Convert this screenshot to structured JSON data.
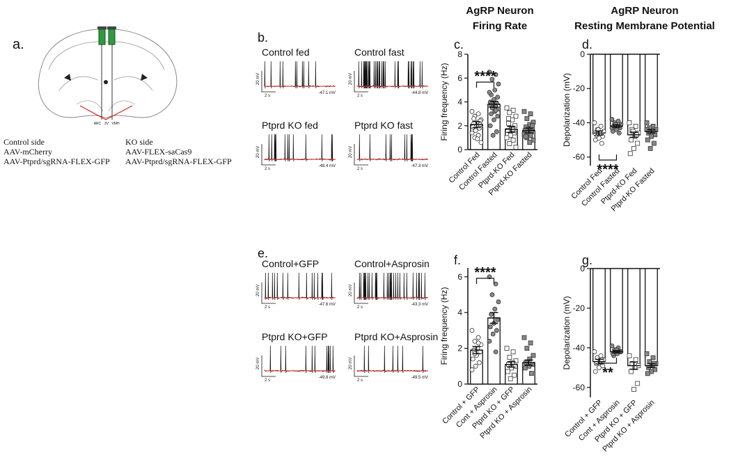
{
  "headers": [
    [
      "AgRP Neuron",
      "Firing Rate"
    ],
    [
      "AgRP Neuron",
      "Resting Membrane Potential"
    ]
  ],
  "panel_a": {
    "label": "a.",
    "left": [
      "Control side",
      "AAV-mCherry",
      "AAV-Ptprd/sgRNA-FLEX-GFP"
    ],
    "right": [
      "KO side",
      "AAV-FLEX-saCas9",
      "AAV-Ptprd/sgRNA-FLEX-GFP"
    ],
    "regions": [
      "ARC",
      "3V",
      "VMH"
    ]
  },
  "panel_b": {
    "label": "b.",
    "traces": [
      {
        "name": "Control fed",
        "potential": "-47.1 mV"
      },
      {
        "name": "Control fast",
        "potential": "-44.8 mV"
      },
      {
        "name": "Ptprd KO fed",
        "potential": "-48.4 mV"
      },
      {
        "name": "Ptprd KO fast",
        "potential": "-47.3 mV"
      }
    ],
    "scale": {
      "voltage": "20 mV",
      "time": "2 s"
    }
  },
  "panel_e": {
    "label": "e.",
    "traces": [
      {
        "name": "Control+GFP",
        "potential": "-47.6 mV"
      },
      {
        "name": "Control+Asprosin",
        "potential": "-43.3 mV"
      },
      {
        "name": "Ptprd KO+GFP",
        "potential": "-49.8 mV"
      },
      {
        "name": "Ptprd KO+Asprosin",
        "potential": "-49.5 mV"
      }
    ],
    "scale": {
      "voltage": "20 mV",
      "time": "2 s"
    }
  },
  "chart_data": [
    {
      "type": "bar",
      "label": "c.",
      "ylabel": "Firing frequency (Hz)",
      "categories": [
        "Control Fed",
        "Control Fasted",
        "Ptprd-KO Fed",
        "Ptprd-KO Fasted"
      ],
      "values": [
        2.1,
        3.8,
        1.7,
        1.6
      ],
      "errors": [
        0.25,
        0.25,
        0.25,
        0.2
      ],
      "ylim": [
        0,
        8
      ],
      "yticks": [
        0,
        2,
        4,
        6,
        8
      ],
      "significance": "****",
      "point_styles": [
        "open-circle",
        "filled-circle",
        "open-square",
        "filled-square"
      ],
      "points": [
        [
          3.2,
          3.0,
          2.8,
          2.5,
          2.3,
          2.2,
          2.1,
          2.0,
          1.9,
          1.8,
          1.6,
          1.4,
          1.2,
          1.0,
          0.6,
          0.9,
          2.6,
          2.4
        ],
        [
          6.5,
          6.3,
          5.9,
          5.5,
          5.0,
          4.6,
          4.4,
          4.2,
          4.0,
          3.9,
          3.8,
          3.7,
          3.6,
          3.5,
          3.4,
          3.2,
          3.0,
          2.8,
          2.5,
          2.0,
          1.5,
          1.2,
          4.8,
          3.3
        ],
        [
          3.5,
          3.3,
          3.1,
          2.8,
          2.5,
          2.2,
          2.0,
          1.8,
          1.6,
          1.4,
          1.2,
          1.0,
          0.8,
          0.5,
          0.2,
          1.7,
          2.6
        ],
        [
          3.2,
          3.0,
          2.6,
          2.3,
          2.1,
          1.9,
          1.8,
          1.7,
          1.6,
          1.5,
          1.4,
          1.3,
          1.2,
          1.0,
          0.8,
          0.6,
          1.1,
          2.0
        ]
      ]
    },
    {
      "type": "bar",
      "label": "d.",
      "ylabel": "Depolarization (mV)",
      "categories": [
        "Control Fed",
        "Control Fasted",
        "Ptprd-KO Fed",
        "Ptprd-KO Fasted"
      ],
      "values": [
        -46,
        -42,
        -47,
        -45
      ],
      "errors": [
        1.2,
        0.8,
        1.5,
        1.0
      ],
      "ylim": [
        -65,
        0
      ],
      "yticks": [
        -60,
        -40,
        -20,
        0
      ],
      "significance": "****",
      "point_styles": [
        "open-circle",
        "filled-circle",
        "open-square",
        "filled-square"
      ],
      "points": [
        [
          -40,
          -42,
          -44,
          -45,
          -46,
          -47,
          -48,
          -49,
          -50,
          -52,
          -44,
          -46
        ],
        [
          -38,
          -39,
          -40,
          -41,
          -42,
          -42,
          -43,
          -44,
          -45,
          -46,
          -41,
          -43
        ],
        [
          -40,
          -42,
          -44,
          -46,
          -48,
          -50,
          -52,
          -55,
          -58,
          -47,
          -45
        ],
        [
          -40,
          -42,
          -43,
          -44,
          -45,
          -46,
          -47,
          -48,
          -50,
          -52,
          -55,
          -44
        ]
      ]
    },
    {
      "type": "bar",
      "label": "f.",
      "ylabel": "Firing frequency (Hz)",
      "categories": [
        "Control + GFP",
        "Cont + Asprosin",
        "Ptprd KO + GFP",
        "Ptprd KO + Asprosin"
      ],
      "values": [
        1.9,
        3.7,
        1.1,
        1.2
      ],
      "errors": [
        0.2,
        0.3,
        0.15,
        0.15
      ],
      "ylim": [
        0,
        6.5
      ],
      "yticks": [
        0,
        2,
        4,
        6
      ],
      "significance": "****",
      "point_styles": [
        "open-circle",
        "filled-circle",
        "open-square",
        "filled-square"
      ],
      "points": [
        [
          3.0,
          2.6,
          2.4,
          2.2,
          2.0,
          1.9,
          1.8,
          1.6,
          1.4,
          1.2,
          1.0,
          0.8,
          2.3,
          1.7
        ],
        [
          6.0,
          5.6,
          5.0,
          4.6,
          4.2,
          3.9,
          3.6,
          3.4,
          3.2,
          3.0,
          2.8,
          2.4,
          1.8
        ],
        [
          2.0,
          1.8,
          1.5,
          1.3,
          1.2,
          1.1,
          1.0,
          0.9,
          0.7,
          0.5,
          0.3
        ],
        [
          2.6,
          2.3,
          2.0,
          1.6,
          1.4,
          1.2,
          1.1,
          1.0,
          0.9,
          0.6
        ]
      ]
    },
    {
      "type": "bar",
      "label": "g.",
      "ylabel": "Depolarization (mV)",
      "categories": [
        "Control + GFP",
        "Cont + Asprosin",
        "Ptprd KO + GFP",
        "Ptprd KO + Asprosin"
      ],
      "values": [
        -47,
        -42,
        -49,
        -49
      ],
      "errors": [
        1.2,
        0.6,
        1.8,
        1.0
      ],
      "ylim": [
        -65,
        0
      ],
      "yticks": [
        -60,
        -40,
        -20,
        0
      ],
      "significance": "**",
      "point_styles": [
        "open-circle",
        "filled-circle",
        "open-square",
        "filled-square"
      ],
      "points": [
        [
          -42,
          -44,
          -45,
          -46,
          -47,
          -48,
          -49,
          -50,
          -52,
          -46
        ],
        [
          -39,
          -40,
          -41,
          -42,
          -43,
          -44,
          -42,
          -41,
          -43
        ],
        [
          -44,
          -46,
          -48,
          -49,
          -50,
          -52,
          -58,
          -61
        ],
        [
          -43,
          -45,
          -47,
          -48,
          -49,
          -50,
          -51,
          -52,
          -53,
          -48
        ]
      ]
    }
  ]
}
